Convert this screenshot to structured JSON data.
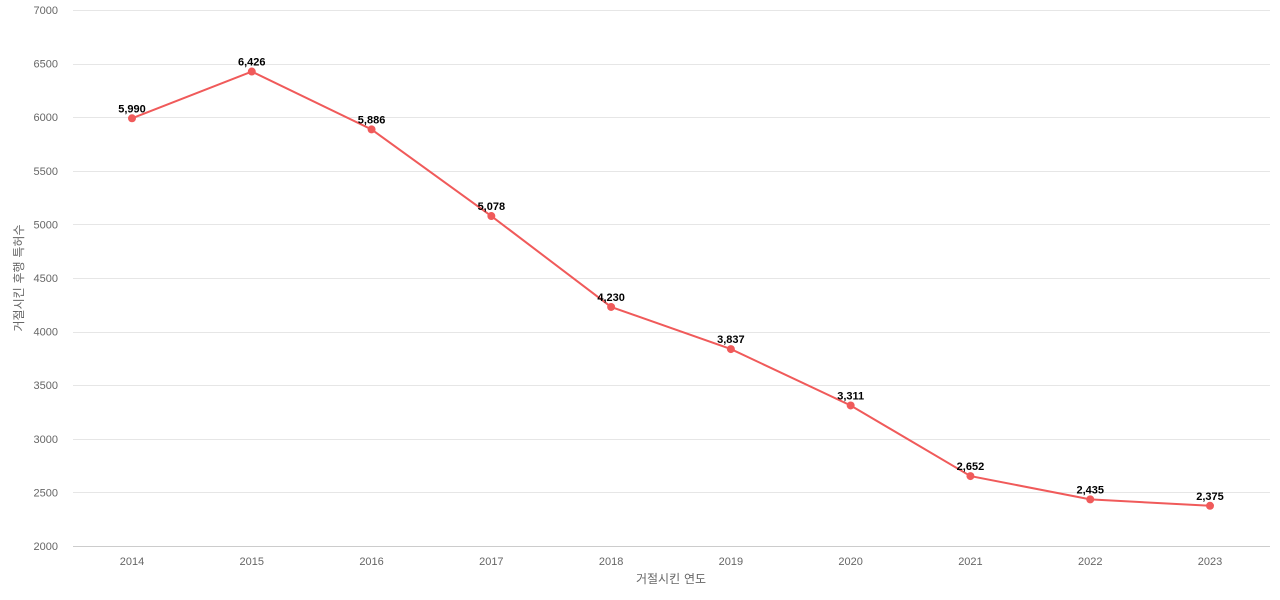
{
  "chart_data": {
    "type": "line",
    "title": "",
    "xlabel": "거절시킨 연도",
    "ylabel": "거절시킨 후행 특허수",
    "x": [
      "2014",
      "2015",
      "2016",
      "2017",
      "2018",
      "2019",
      "2020",
      "2021",
      "2022",
      "2023"
    ],
    "series": [
      {
        "values": [
          5990,
          6426,
          5886,
          5078,
          4230,
          3837,
          3311,
          2652,
          2435,
          2375
        ],
        "labels": [
          "5,990",
          "6,426",
          "5,886",
          "5,078",
          "4,230",
          "3,837",
          "3,311",
          "2,652",
          "2,435",
          "2,375"
        ],
        "color": "#f05a5a"
      }
    ],
    "yticks": [
      2000,
      2500,
      3000,
      3500,
      4000,
      4500,
      5000,
      5500,
      6000,
      6500,
      7000
    ],
    "ylim": [
      2000,
      7000
    ],
    "grid": true,
    "legend": "none"
  }
}
